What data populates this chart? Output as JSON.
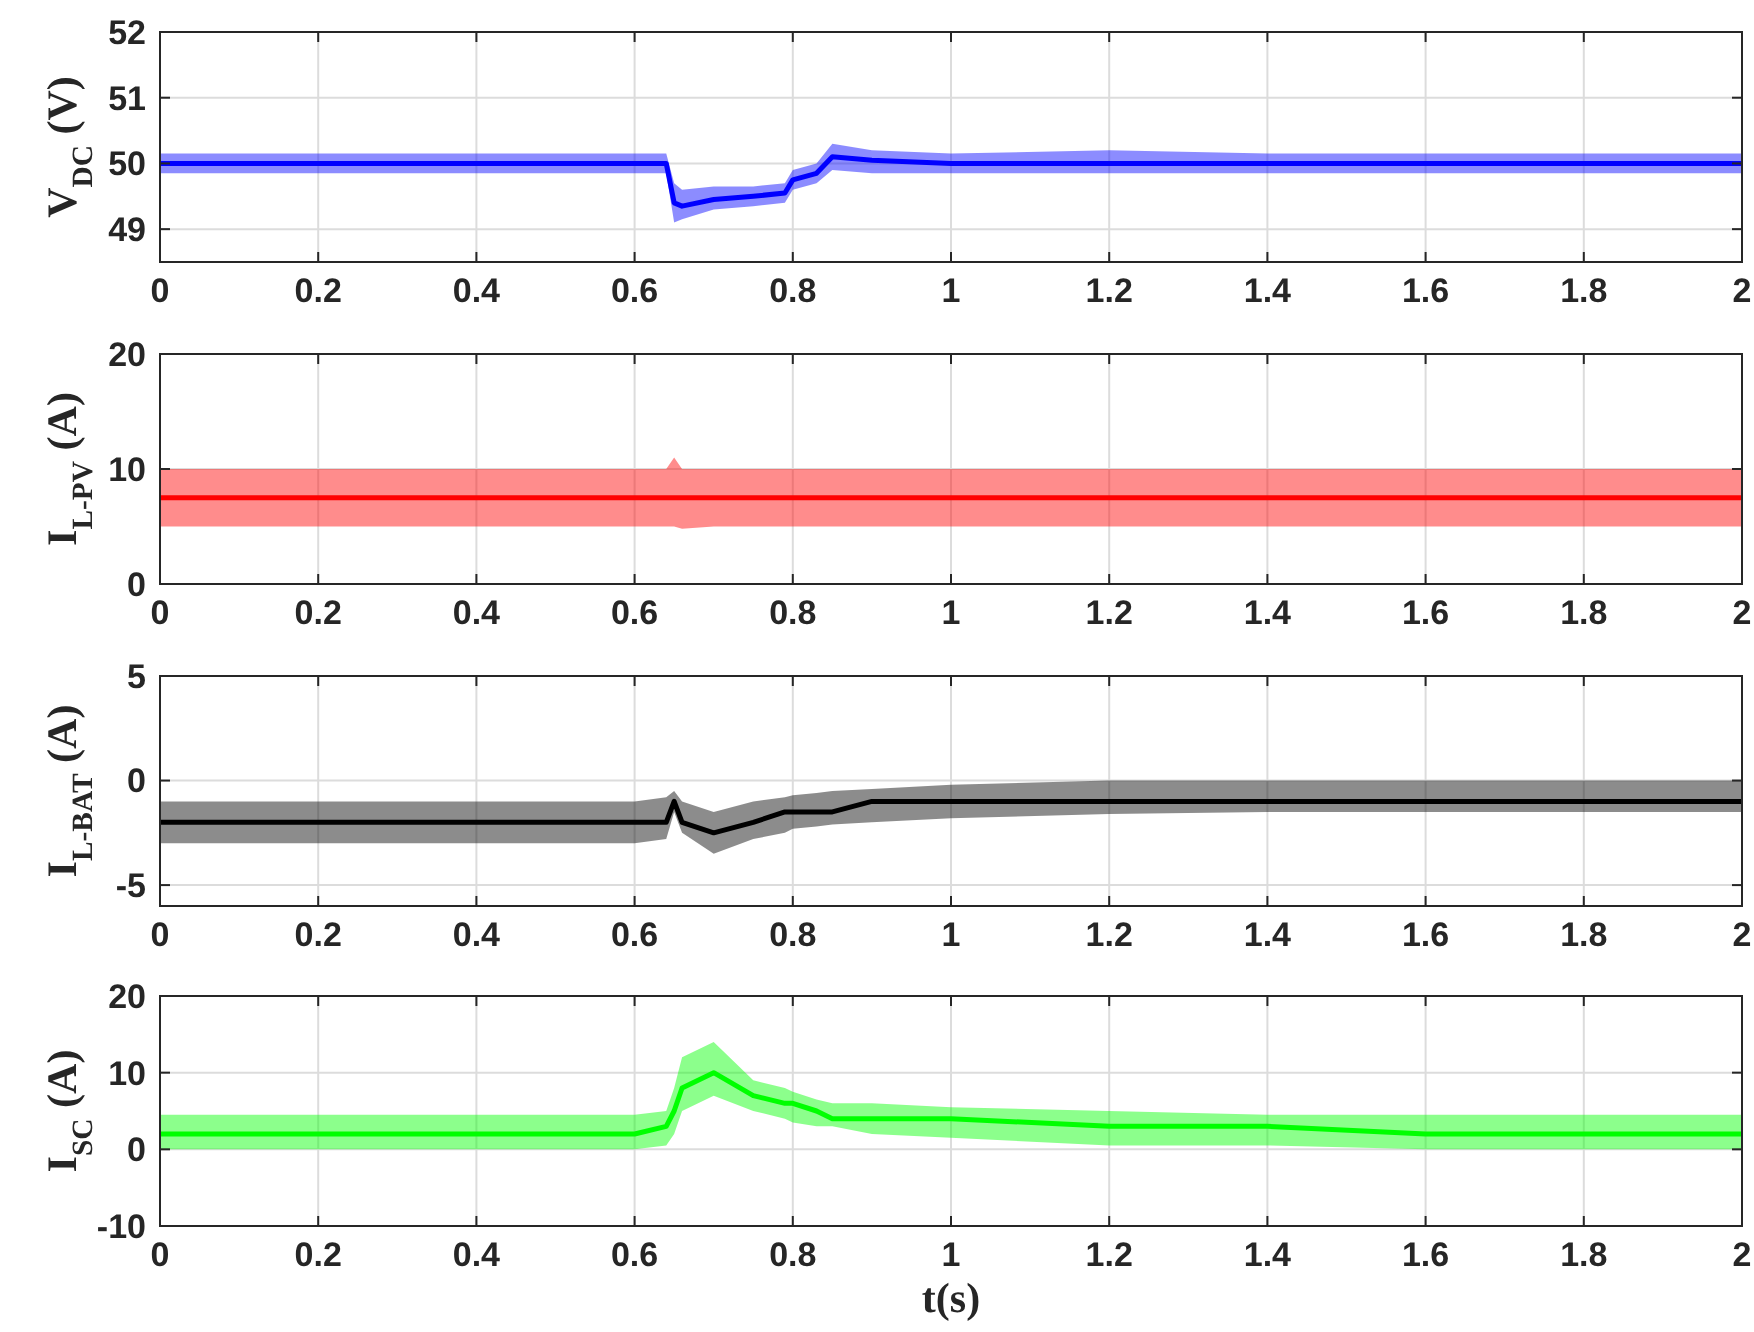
{
  "chart_data": [
    {
      "type": "line",
      "ylabel": "V$_{DC}$ (V)",
      "x": [
        0,
        0.1,
        0.2,
        0.3,
        0.4,
        0.5,
        0.6,
        0.64,
        0.65,
        0.66,
        0.7,
        0.75,
        0.79,
        0.8,
        0.83,
        0.85,
        0.9,
        1,
        1.2,
        1.4,
        1.6,
        1.8,
        2
      ],
      "xlim": [
        0,
        2
      ],
      "xticks": [
        0,
        0.2,
        0.4,
        0.6,
        0.8,
        1,
        1.2,
        1.4,
        1.6,
        1.8,
        2
      ],
      "ylim": [
        48.5,
        52
      ],
      "yticks": [
        49,
        50,
        51,
        52
      ],
      "grid": true,
      "series": [
        {
          "color": "#0000ff",
          "values": [
            50,
            50,
            50,
            50,
            50,
            50,
            50,
            50,
            49.4,
            49.35,
            49.45,
            49.5,
            49.55,
            49.75,
            49.85,
            50.1,
            50.05,
            50,
            50,
            50,
            50,
            50,
            50
          ],
          "lower": [
            49.85,
            49.85,
            49.85,
            49.85,
            49.85,
            49.85,
            49.85,
            49.85,
            49.1,
            49.15,
            49.3,
            49.35,
            49.4,
            49.6,
            49.7,
            49.9,
            49.85,
            49.85,
            49.85,
            49.85,
            49.85,
            49.85,
            49.85
          ],
          "upper": [
            50.15,
            50.15,
            50.15,
            50.15,
            50.15,
            50.15,
            50.15,
            50.15,
            49.7,
            49.6,
            49.65,
            49.65,
            49.7,
            49.9,
            50,
            50.3,
            50.2,
            50.15,
            50.2,
            50.15,
            50.15,
            50.15,
            50.15
          ]
        }
      ]
    },
    {
      "type": "line",
      "ylabel": "I$_{L-PV}$ (A)",
      "x": [
        0,
        0.1,
        0.2,
        0.3,
        0.4,
        0.5,
        0.6,
        0.64,
        0.65,
        0.66,
        0.7,
        0.75,
        0.79,
        0.8,
        0.83,
        0.85,
        0.9,
        1,
        1.2,
        1.4,
        1.6,
        1.8,
        2
      ],
      "xlim": [
        0,
        2
      ],
      "xticks": [
        0,
        0.2,
        0.4,
        0.6,
        0.8,
        1,
        1.2,
        1.4,
        1.6,
        1.8,
        2
      ],
      "ylim": [
        0,
        20
      ],
      "yticks": [
        0,
        10,
        20
      ],
      "grid": true,
      "series": [
        {
          "color": "#ff0000",
          "values": [
            7.5,
            7.5,
            7.5,
            7.5,
            7.5,
            7.5,
            7.5,
            7.5,
            7.5,
            7.5,
            7.5,
            7.5,
            7.5,
            7.5,
            7.5,
            7.5,
            7.5,
            7.5,
            7.5,
            7.5,
            7.5,
            7.5,
            7.5
          ],
          "lower": [
            5,
            5,
            5,
            5,
            5,
            5,
            5,
            5,
            5,
            4.8,
            5,
            5,
            5,
            5,
            5,
            5,
            5,
            5,
            5,
            5,
            5,
            5,
            5
          ],
          "upper": [
            10,
            10,
            10,
            10,
            10,
            10,
            10,
            10,
            11,
            10,
            10,
            10,
            10,
            10,
            10,
            10,
            10,
            10,
            10,
            10,
            10,
            10,
            10
          ]
        }
      ]
    },
    {
      "type": "line",
      "ylabel": "I$_{L-BAT}$ (A)",
      "x": [
        0,
        0.1,
        0.2,
        0.3,
        0.4,
        0.5,
        0.6,
        0.64,
        0.65,
        0.66,
        0.7,
        0.75,
        0.79,
        0.8,
        0.83,
        0.85,
        0.9,
        1,
        1.2,
        1.4,
        1.6,
        1.8,
        2
      ],
      "xlim": [
        0,
        2
      ],
      "xticks": [
        0,
        0.2,
        0.4,
        0.6,
        0.8,
        1,
        1.2,
        1.4,
        1.6,
        1.8,
        2
      ],
      "ylim": [
        -6,
        5
      ],
      "yticks": [
        -5,
        0,
        5
      ],
      "grid": true,
      "series": [
        {
          "color": "#000000",
          "values": [
            -2,
            -2,
            -2,
            -2,
            -2,
            -2,
            -2,
            -2,
            -1,
            -2,
            -2.5,
            -2,
            -1.5,
            -1.5,
            -1.5,
            -1.5,
            -1,
            -1,
            -1,
            -1,
            -1,
            -1,
            -1
          ],
          "lower": [
            -3,
            -3,
            -3,
            -3,
            -3,
            -3,
            -3,
            -2.8,
            -1.5,
            -2.5,
            -3.5,
            -2.8,
            -2.5,
            -2.3,
            -2.2,
            -2.1,
            -2,
            -1.8,
            -1.6,
            -1.5,
            -1.5,
            -1.5,
            -1.5
          ],
          "upper": [
            -1,
            -1,
            -1,
            -1,
            -1,
            -1,
            -1,
            -0.8,
            -0.5,
            -1,
            -1.5,
            -1,
            -0.8,
            -0.7,
            -0.6,
            -0.5,
            -0.4,
            -0.2,
            0,
            0,
            0,
            0,
            0
          ]
        }
      ]
    },
    {
      "type": "line",
      "ylabel": "I$_{SC}$ (A)",
      "xlabel": "t(s)",
      "x": [
        0,
        0.1,
        0.2,
        0.3,
        0.4,
        0.5,
        0.6,
        0.64,
        0.65,
        0.66,
        0.7,
        0.75,
        0.79,
        0.8,
        0.83,
        0.85,
        0.9,
        1,
        1.2,
        1.4,
        1.6,
        1.8,
        2
      ],
      "xlim": [
        0,
        2
      ],
      "xticks": [
        0,
        0.2,
        0.4,
        0.6,
        0.8,
        1,
        1.2,
        1.4,
        1.6,
        1.8,
        2
      ],
      "ylim": [
        -10,
        20
      ],
      "yticks": [
        -10,
        0,
        10,
        20
      ],
      "grid": true,
      "series": [
        {
          "color": "#00ff00",
          "values": [
            2,
            2,
            2,
            2,
            2,
            2,
            2,
            3,
            5,
            8,
            10,
            7,
            6,
            6,
            5,
            4,
            4,
            4,
            3,
            3,
            2,
            2,
            2
          ],
          "lower": [
            0,
            0,
            0,
            0,
            0,
            0,
            0,
            0.5,
            2,
            5,
            7,
            5,
            4,
            3.5,
            3,
            3,
            2,
            1.5,
            0.5,
            0.5,
            0,
            0,
            0
          ],
          "upper": [
            4.5,
            4.5,
            4.5,
            4.5,
            4.5,
            4.5,
            4.5,
            5,
            8,
            12,
            14,
            9,
            8,
            7.5,
            6.5,
            6,
            6,
            5.5,
            5,
            4.5,
            4.5,
            4.5,
            4.5
          ]
        }
      ]
    }
  ]
}
